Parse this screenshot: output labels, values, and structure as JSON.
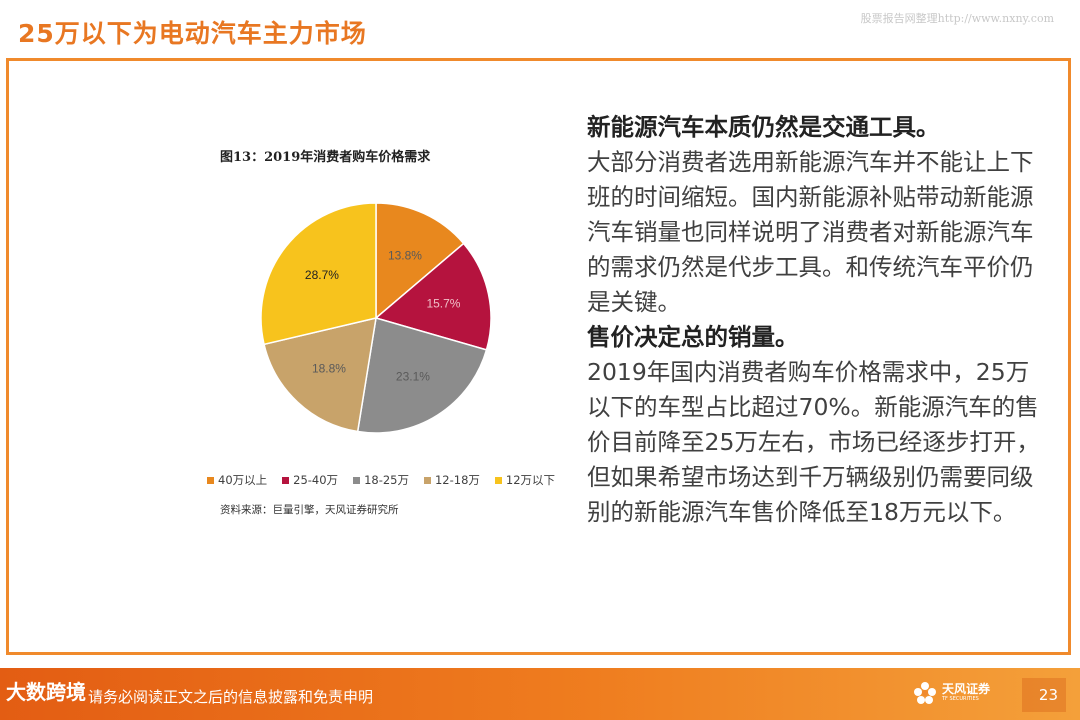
{
  "slide": {
    "title": "25万以下为电动汽车主力市场",
    "watermark": "股票报告网整理http://www.nxny.com",
    "page_number": "23"
  },
  "chart_data": {
    "type": "pie",
    "title": "图13：2019年消费者购车价格需求",
    "categories": [
      "40万以上",
      "25-40万",
      "18-25万",
      "12-18万",
      "12万以下"
    ],
    "values": [
      13.8,
      15.7,
      23.1,
      18.8,
      28.7
    ],
    "labels": [
      "13.8%",
      "15.7%",
      "23.1%",
      "18.8%",
      "28.7%"
    ],
    "colors": [
      "#e8881e",
      "#b5133e",
      "#8c8c8c",
      "#c8a36a",
      "#f7c31d"
    ],
    "legend_position": "bottom",
    "source": "资料来源：巨量引擎，天风证券研究所"
  },
  "text": {
    "heading1": "新能源汽车本质仍然是交通工具。",
    "para1": "大部分消费者选用新能源汽车并不能让上下班的时间缩短。国内新能源补贴带动新能源汽车销量也同样说明了消费者对新能源汽车的需求仍然是代步工具。和传统汽车平价仍是关键。",
    "heading2": "售价决定总的销量。",
    "para2": "2019年国内消费者购车价格需求中，25万以下的车型占比超过70%。新能源汽车的售价目前降至25万左右，市场已经逐步打开，但如果希望市场达到千万辆级别仍需要同级别的新能源汽车售价降低至18万元以下。"
  },
  "footer": {
    "disclaimer": "请务必阅读正文之后的信息披露和免责申明",
    "brand_name": "天风证券",
    "brand_sub": "TF SECURITIES",
    "corner_logo": "大数跨境"
  }
}
